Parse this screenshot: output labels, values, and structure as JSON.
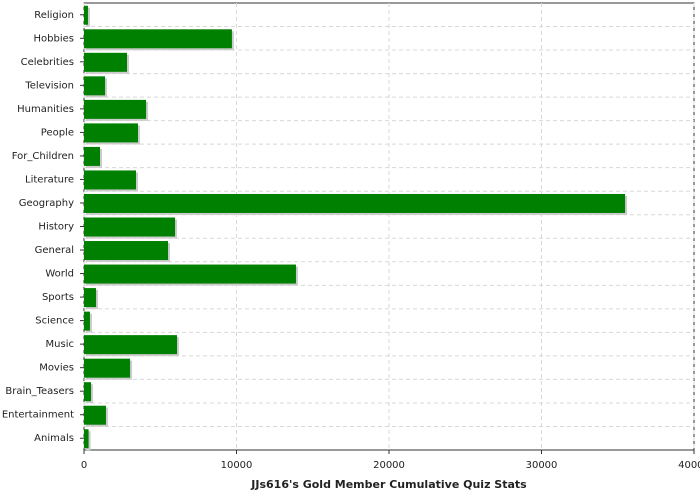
{
  "chart_data": {
    "type": "barh",
    "xlabel": "JJs616's Gold Member Cumulative Quiz Stats",
    "categories": [
      "Religion",
      "Hobbies",
      "Celebrities",
      "Television",
      "Humanities",
      "People",
      "For_Children",
      "Literature",
      "Geography",
      "History",
      "General",
      "World",
      "Sports",
      "Science",
      "Music",
      "Movies",
      "Brain_Teasers",
      "Entertainment",
      "Animals"
    ],
    "values": [
      260,
      9700,
      2820,
      1380,
      4070,
      3540,
      1050,
      3410,
      35480,
      5970,
      5510,
      13900,
      790,
      390,
      6100,
      3020,
      460,
      1440,
      300
    ],
    "color": "#008000",
    "xlim": [
      0,
      40000
    ],
    "xticks": [
      0,
      10000,
      20000,
      30000,
      40000
    ],
    "grid": true
  }
}
